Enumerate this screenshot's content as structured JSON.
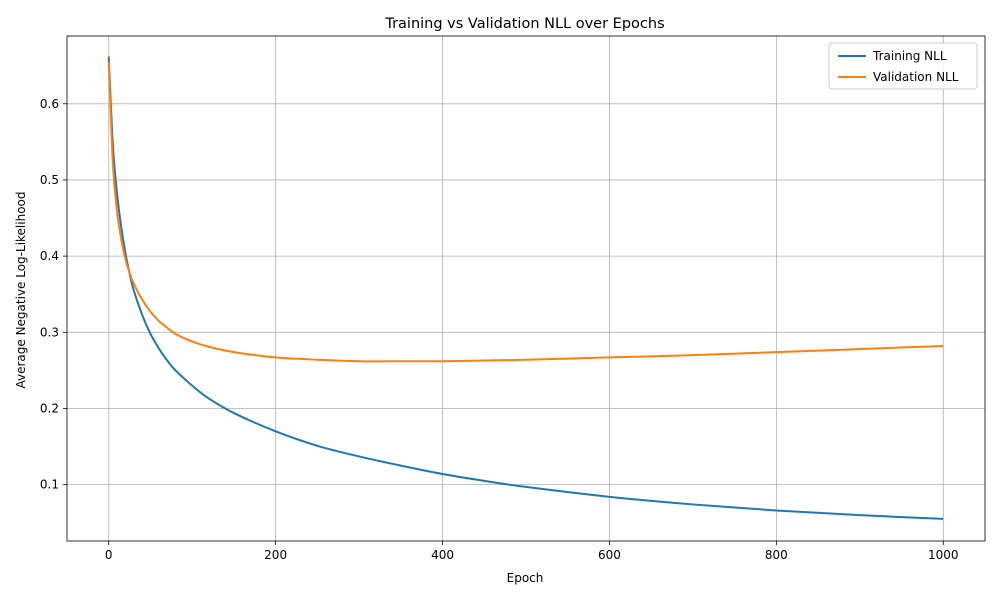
{
  "chart_data": {
    "type": "line",
    "title": "Training vs Validation NLL over Epochs",
    "xlabel": "Epoch",
    "ylabel": "Average Negative Log-Likelihood",
    "xlim": [
      -50,
      1050
    ],
    "ylim": [
      0.026,
      0.689
    ],
    "xticks": [
      0,
      200,
      400,
      600,
      800,
      1000
    ],
    "yticks": [
      0.1,
      0.2,
      0.3,
      0.4,
      0.5,
      0.6
    ],
    "grid": true,
    "legend_position": "top-right",
    "series": [
      {
        "name": "Training NLL",
        "color": "#1f77b4",
        "x": [
          0,
          5,
          10,
          15,
          20,
          25,
          30,
          40,
          50,
          60,
          70,
          80,
          100,
          120,
          150,
          200,
          250,
          300,
          350,
          400,
          450,
          500,
          600,
          700,
          800,
          900,
          1000
        ],
        "y": [
          0.662,
          0.545,
          0.482,
          0.438,
          0.404,
          0.377,
          0.355,
          0.323,
          0.298,
          0.279,
          0.263,
          0.25,
          0.23,
          0.213,
          0.194,
          0.17,
          0.151,
          0.137,
          0.125,
          0.114,
          0.105,
          0.097,
          0.084,
          0.074,
          0.066,
          0.06,
          0.055
        ]
      },
      {
        "name": "Validation NLL",
        "color": "#ff7f0e",
        "x": [
          0,
          5,
          10,
          15,
          20,
          25,
          30,
          40,
          50,
          60,
          70,
          80,
          100,
          120,
          150,
          200,
          250,
          300,
          350,
          400,
          450,
          500,
          600,
          700,
          800,
          900,
          1000
        ],
        "y": [
          0.655,
          0.52,
          0.458,
          0.422,
          0.396,
          0.378,
          0.364,
          0.343,
          0.327,
          0.315,
          0.306,
          0.298,
          0.288,
          0.281,
          0.274,
          0.267,
          0.264,
          0.262,
          0.262,
          0.262,
          0.263,
          0.264,
          0.267,
          0.27,
          0.274,
          0.278,
          0.282
        ]
      }
    ]
  }
}
